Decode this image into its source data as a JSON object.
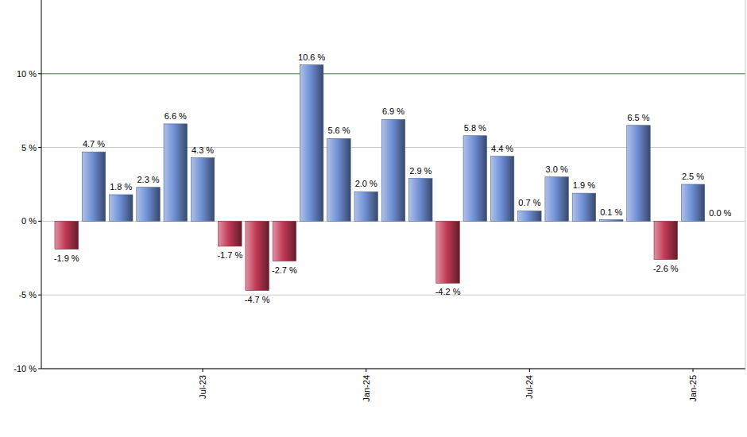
{
  "chart_data": {
    "type": "bar",
    "categories": [
      null,
      null,
      null,
      null,
      null,
      "Jul-23",
      null,
      null,
      null,
      null,
      null,
      "Jan-24",
      null,
      null,
      null,
      null,
      null,
      "Jul-24",
      null,
      null,
      null,
      null,
      null,
      "Jan-25",
      null
    ],
    "values": [
      -1.9,
      4.7,
      1.8,
      2.3,
      6.6,
      4.3,
      -1.7,
      -4.7,
      -2.7,
      10.6,
      5.6,
      2.0,
      6.9,
      2.9,
      -4.2,
      5.8,
      4.4,
      0.7,
      3.0,
      1.9,
      0.1,
      6.5,
      -2.6,
      2.5,
      0.0
    ],
    "value_labels": [
      "-1.9 %",
      "4.7 %",
      "1.8 %",
      "2.3 %",
      "6.6 %",
      "4.3 %",
      "-1.7 %",
      "-4.7 %",
      "-2.7 %",
      "10.6 %",
      "5.6 %",
      "2.0 %",
      "6.9 %",
      "2.9 %",
      "-4.2 %",
      "5.8 %",
      "4.4 %",
      "0.7 %",
      "3.0 %",
      "1.9 %",
      "0.1 %",
      "6.5 %",
      "-2.6 %",
      "2.5 %",
      "0.0 %"
    ],
    "colors": [
      "#c23a55",
      "#6f8fd6",
      "#6f8fd6",
      "#6f8fd6",
      "#6f8fd6",
      "#6f8fd6",
      "#c23a55",
      "#c23a55",
      "#c23a55",
      "#6f8fd6",
      "#6f8fd6",
      "#6f8fd6",
      "#6f8fd6",
      "#6f8fd6",
      "#c23a55",
      "#6f8fd6",
      "#6f8fd6",
      "#6f8fd6",
      "#6f8fd6",
      "#6f8fd6",
      "#6f8fd6",
      "#6f8fd6",
      "#c23a55",
      "#6f8fd6",
      "#6f8fd6"
    ],
    "ylim": [
      -10,
      15
    ],
    "yticks": [
      {
        "value": -10,
        "label": "-10 %"
      },
      {
        "value": -5,
        "label": "-5 %"
      },
      {
        "value": 0,
        "label": "0 %"
      },
      {
        "value": 5,
        "label": "5 %"
      },
      {
        "value": 10,
        "label": "10 %"
      }
    ],
    "grid": true,
    "data_labels": true
  }
}
